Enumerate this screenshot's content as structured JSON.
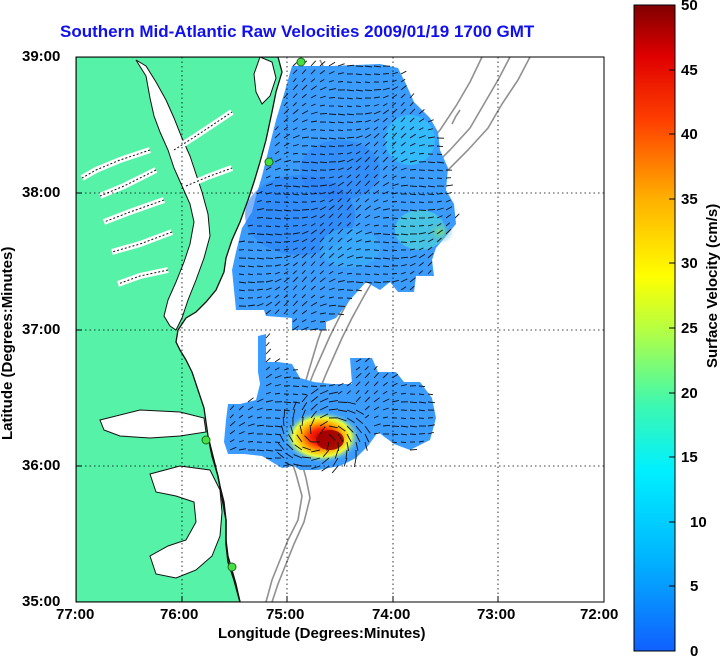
{
  "title": "Southern Mid-Atlantic Raw Velocities 2009/01/19 1700 GMT",
  "x_axis": {
    "label": "Longitude (Degrees:Minutes)",
    "ticks": [
      "77:00",
      "76:00",
      "75:00",
      "74:00",
      "73:00",
      "72:00"
    ]
  },
  "y_axis": {
    "label": "Latitude (Degrees:Minutes)",
    "ticks": [
      "39:00",
      "38:00",
      "37:00",
      "36:00",
      "35:00"
    ]
  },
  "colorbar": {
    "label": "Surface Velocity (cm/s)",
    "ticks": [
      "50",
      "45",
      "40",
      "35",
      "30",
      "25",
      "20",
      "15",
      "10",
      "5",
      "0"
    ],
    "min": 0,
    "max": 50
  },
  "colors": {
    "land": "#55f2a8",
    "coast": "#111111",
    "bathymetry": "#909090",
    "field_base": "#3b9cff",
    "grid": "#000000",
    "title": "#1010ee"
  },
  "grid": true
}
